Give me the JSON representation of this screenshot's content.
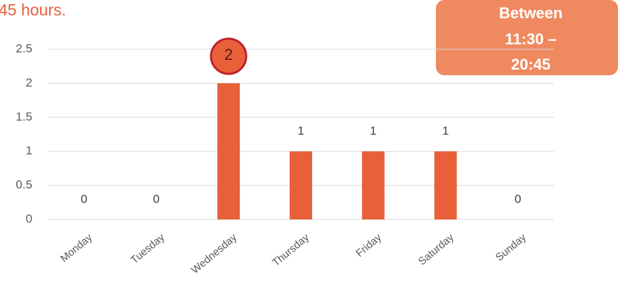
{
  "chart_data": {
    "type": "bar",
    "title": "45 hours.",
    "callout": [
      "Between",
      "11:30 –",
      "20:45"
    ],
    "annotation": "2",
    "categories": [
      "Monday",
      "Tuesday",
      "Wednesday",
      "Thursday",
      "Friday",
      "Saturday",
      "Sunday"
    ],
    "values": [
      0,
      0,
      2,
      1,
      1,
      1,
      0
    ],
    "color": "#e8603a",
    "ylim": [
      0,
      2.5
    ],
    "yticks": [
      0,
      0.5,
      1,
      1.5,
      2,
      2.5
    ],
    "grid": true
  }
}
